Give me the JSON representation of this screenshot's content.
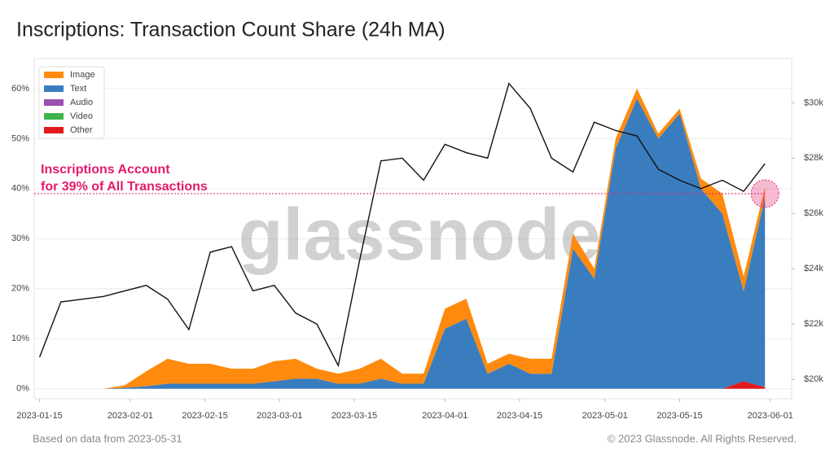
{
  "chart_data": {
    "type": "stacked-area",
    "title": "Inscriptions: Transaction Count Share (24h MA)",
    "watermark": "glassnode",
    "source_note": "Based on data from 2023-05-31",
    "copyright": "© 2023 Glassnode. All Rights Reserved.",
    "annotation": {
      "text": [
        "Inscriptions Account",
        "for 39% of All Transactions"
      ],
      "value": 39,
      "color": "#e6196e"
    },
    "x": [
      "2023-01-15",
      "2023-01-19",
      "2023-01-23",
      "2023-01-27",
      "2023-01-31",
      "2023-02-04",
      "2023-02-08",
      "2023-02-12",
      "2023-02-16",
      "2023-02-20",
      "2023-02-24",
      "2023-02-28",
      "2023-03-04",
      "2023-03-08",
      "2023-03-12",
      "2023-03-16",
      "2023-03-20",
      "2023-03-24",
      "2023-03-28",
      "2023-04-01",
      "2023-04-05",
      "2023-04-09",
      "2023-04-13",
      "2023-04-17",
      "2023-04-21",
      "2023-04-25",
      "2023-04-29",
      "2023-05-03",
      "2023-05-07",
      "2023-05-11",
      "2023-05-15",
      "2023-05-19",
      "2023-05-23",
      "2023-05-27",
      "2023-05-31"
    ],
    "xlim": [
      "2023-01-14",
      "2023-06-05"
    ],
    "xticks": [
      "2023-01-15",
      "2023-02-01",
      "2023-02-15",
      "2023-03-01",
      "2023-03-15",
      "2023-04-01",
      "2023-04-15",
      "2023-05-01",
      "2023-05-15",
      "2023-06-01"
    ],
    "ylim": [
      -2,
      66
    ],
    "yticks": [
      {
        "value": 0,
        "label": "0%"
      },
      {
        "value": 10,
        "label": "10%"
      },
      {
        "value": 20,
        "label": "20%"
      },
      {
        "value": 30,
        "label": "30%"
      },
      {
        "value": 40,
        "label": "40%"
      },
      {
        "value": 50,
        "label": "50%"
      },
      {
        "value": 60,
        "label": "60%"
      }
    ],
    "y2lim": [
      19300,
      31600
    ],
    "y2ticks": [
      {
        "value": 20000,
        "label": "$20k"
      },
      {
        "value": 22000,
        "label": "$22k"
      },
      {
        "value": 24000,
        "label": "$24k"
      },
      {
        "value": 26000,
        "label": "$26k"
      },
      {
        "value": 28000,
        "label": "$28k"
      },
      {
        "value": 30000,
        "label": "$30k"
      }
    ],
    "grid": true,
    "legend_position": "top-left",
    "series": [
      {
        "name": "Image",
        "color": "#ff8a0d",
        "values": [
          0,
          0,
          0,
          0,
          0.5,
          3,
          5,
          4,
          4,
          3,
          3,
          4,
          4,
          2,
          2,
          3,
          4,
          2,
          2,
          4,
          4,
          2,
          2,
          3,
          3,
          3,
          2,
          2,
          2,
          1,
          1,
          2,
          4,
          3,
          2
        ]
      },
      {
        "name": "Text",
        "color": "#3a7dbf",
        "values": [
          0,
          0,
          0,
          0,
          0.2,
          0.5,
          1,
          1,
          1,
          1,
          1,
          1.5,
          2,
          2,
          1,
          1,
          2,
          1,
          1,
          12,
          14,
          3,
          5,
          3,
          3,
          28,
          22,
          48,
          58,
          50,
          55,
          40,
          35,
          18,
          38
        ]
      },
      {
        "name": "Audio",
        "color": "#9b4fb0",
        "values": [
          0,
          0,
          0,
          0,
          0,
          0,
          0,
          0,
          0,
          0,
          0,
          0,
          0,
          0,
          0,
          0,
          0,
          0,
          0,
          0,
          0,
          0,
          0,
          0,
          0,
          0,
          0,
          0,
          0,
          0,
          0,
          0,
          0,
          0,
          0
        ]
      },
      {
        "name": "Video",
        "color": "#3cb44b",
        "values": [
          0,
          0,
          0,
          0,
          0,
          0,
          0,
          0,
          0,
          0,
          0,
          0,
          0,
          0,
          0,
          0,
          0,
          0,
          0,
          0,
          0,
          0,
          0,
          0,
          0,
          0,
          0,
          0,
          0,
          0,
          0,
          0,
          0,
          0,
          0
        ]
      },
      {
        "name": "Other",
        "color": "#e31a1c",
        "values": [
          0,
          0,
          0,
          0,
          0,
          0,
          0,
          0,
          0,
          0,
          0,
          0,
          0,
          0,
          0,
          0,
          0,
          0,
          0,
          0,
          0,
          0,
          0,
          0,
          0,
          0,
          0,
          0,
          0,
          0,
          0,
          0,
          0,
          1.5,
          0.3
        ]
      },
      {
        "type": "line",
        "axis": "y2",
        "color": "#111111",
        "values": [
          20800,
          22800,
          22900,
          23000,
          23200,
          23400,
          22900,
          21800,
          24600,
          24800,
          23200,
          23400,
          22400,
          22000,
          20500,
          24300,
          27900,
          28000,
          27200,
          28500,
          28200,
          28000,
          30700,
          29800,
          28000,
          27500,
          29300,
          29000,
          28800,
          27600,
          27200,
          26900,
          27200,
          26800,
          27800
        ]
      }
    ]
  }
}
